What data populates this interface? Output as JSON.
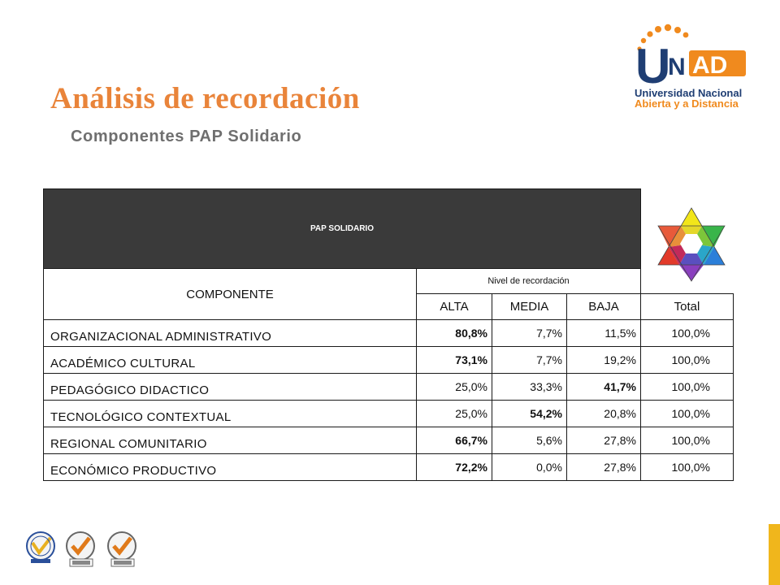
{
  "title": "Análisis  de recordación",
  "subtitle": "Componentes PAP Solidario",
  "logo": {
    "letters": [
      "U",
      "N",
      "AD"
    ],
    "line1": "Universidad Nacional",
    "line2": "Abierta y a Distancia",
    "colors": {
      "navy": "#1f3e73",
      "orange": "#f08a1e"
    }
  },
  "table": {
    "header": "PAP SOLIDARIO",
    "component_label": "COMPONENTE",
    "level_label": "Nivel de recordación",
    "columns": [
      "ALTA",
      "MEDIA",
      "BAJA",
      "Total"
    ],
    "rows": [
      {
        "name": "ORGANIZACIONAL  ADMINISTRATIVO",
        "values": [
          "80,8%",
          "7,7%",
          "11,5%",
          "100,0%"
        ],
        "bold": 0
      },
      {
        "name": "ACADÉMICO  CULTURAL",
        "values": [
          "73,1%",
          "7,7%",
          "19,2%",
          "100,0%"
        ],
        "bold": 0
      },
      {
        "name": "PEDAGÓGICO  DIDACTICO",
        "values": [
          "25,0%",
          "33,3%",
          "41,7%",
          "100,0%"
        ],
        "bold": 2
      },
      {
        "name": "TECNOLÓGICO  CONTEXTUAL",
        "values": [
          "25,0%",
          "54,2%",
          "20,8%",
          "100,0%"
        ],
        "bold": 1
      },
      {
        "name": "REGIONAL  COMUNITARIO",
        "values": [
          "66,7%",
          "5,6%",
          "27,8%",
          "100,0%"
        ],
        "bold": 0
      },
      {
        "name": "ECONÓMICO  PRODUCTIVO",
        "values": [
          "72,2%",
          "0,0%",
          "27,8%",
          "100,0%"
        ],
        "bold": 0
      }
    ]
  },
  "icons": {
    "star": "hexagram-color-star-icon",
    "seals": [
      "certification-seal-icon",
      "sgs-seal-icon",
      "sgs-seal-icon"
    ]
  },
  "colors": {
    "title": "#e9843a",
    "subtitle": "#6f6f6f",
    "table_header_bg": "#3a3a3a",
    "accent_bar": "#f0b61c"
  }
}
